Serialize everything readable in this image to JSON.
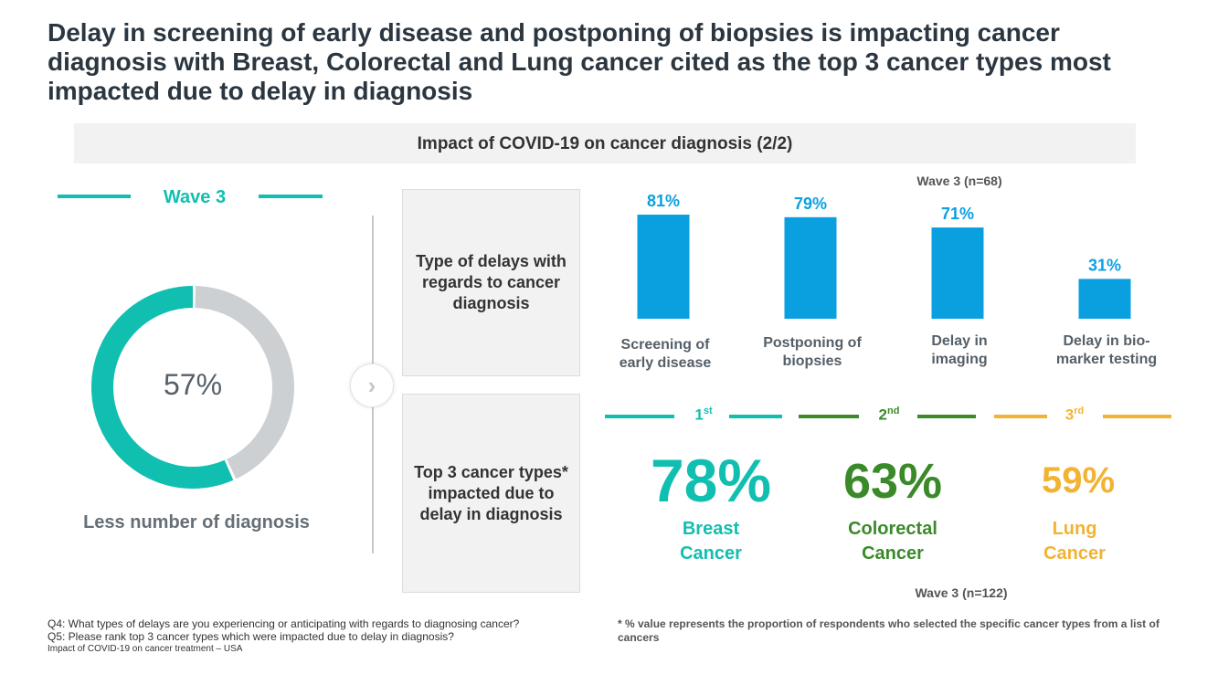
{
  "title": "Delay in screening of early disease and postponing of biopsies is impacting cancer diagnosis with Breast, Colorectal and Lung cancer cited as the top 3 cancer types most impacted due to delay in diagnosis",
  "banner": "Impact of COVID-19 on cancer diagnosis (2/2)",
  "left": {
    "wave": "Wave 3",
    "value_label": "57%",
    "caption": "Less number of diagnosis",
    "colors": {
      "filled": "#11bfb0",
      "remaining": "#cdd0d3"
    }
  },
  "boxes": {
    "delays": "Type of delays with regards to cancer diagnosis",
    "cancers": "Top 3 cancer types* impacted due to delay in diagnosis"
  },
  "chart_data": [
    {
      "type": "pie",
      "values": [
        57,
        43
      ],
      "value_label": "57%",
      "caption": "Less number of diagnosis"
    },
    {
      "type": "bar",
      "title": "Wave 3 (n=68)",
      "categories": [
        "Screening of early disease",
        "Postponing of biopsies",
        "Delay in imaging",
        "Delay in bio-marker testing"
      ],
      "category_lines": [
        [
          "Screening of",
          "early disease"
        ],
        [
          "Postponing of",
          "biopsies"
        ],
        [
          "Delay in",
          "imaging"
        ],
        [
          "Delay in bio-",
          "marker testing"
        ]
      ],
      "values": [
        81,
        79,
        71,
        31
      ],
      "value_labels": [
        "81%",
        "79%",
        "71%",
        "31%"
      ],
      "ylim": [
        0,
        81
      ],
      "color": "#0aa0e0"
    }
  ],
  "ranking": {
    "n_label": "Wave 3 (n=122)",
    "items": [
      {
        "rank_num": "1",
        "rank_suffix": "st",
        "value": "78%",
        "name_line1": "Breast",
        "name_line2": "Cancer",
        "color": "#11bfb0"
      },
      {
        "rank_num": "2",
        "rank_suffix": "nd",
        "value": "63%",
        "name_line1": "Colorectal",
        "name_line2": "Cancer",
        "color": "#3b8a2a"
      },
      {
        "rank_num": "3",
        "rank_suffix": "rd",
        "value": "59%",
        "name_line1": "Lung",
        "name_line2": "Cancer",
        "color": "#f2b333"
      }
    ]
  },
  "footnotes": {
    "q4": "Q4: What types of delays are you experiencing or anticipating with regards to diagnosing cancer?",
    "q5": "Q5: Please rank top 3 cancer types which were impacted due to delay in diagnosis?",
    "source": "Impact of COVID-19 on cancer treatment – USA",
    "note": "* % value represents the proportion of respondents who selected the specific cancer types from a list of cancers"
  }
}
